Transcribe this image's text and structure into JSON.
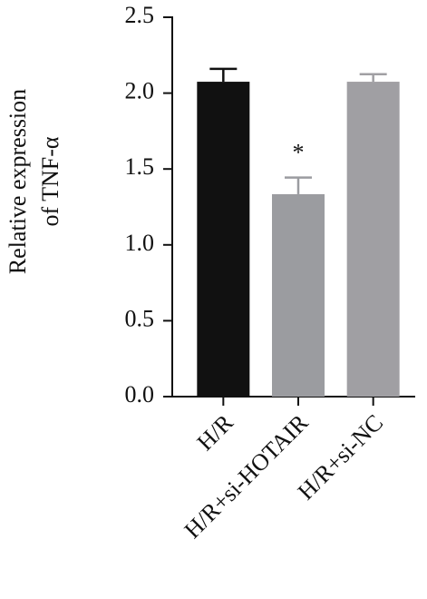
{
  "chart_data": {
    "type": "bar",
    "ylabel": [
      "Relative expression",
      "of TNF-α"
    ],
    "categories": [
      "H/R",
      "H/R+si-HOTAIR",
      "H/R+si-NC"
    ],
    "values": [
      2.075,
      1.334,
      2.075
    ],
    "errors": [
      0.085,
      0.11,
      0.05
    ],
    "colors": [
      "#111111",
      "#9b9ca0",
      "#a09fa3"
    ],
    "significance_labels": [
      null,
      "*",
      null
    ],
    "ylim": [
      0,
      2.5
    ],
    "yticks": [
      {
        "value": 0,
        "label": "0.0"
      },
      {
        "value": 0.5,
        "label": "0.5"
      },
      {
        "value": 1,
        "label": "1.0"
      },
      {
        "value": 1.5,
        "label": "1.5"
      },
      {
        "value": 2,
        "label": "2.0"
      },
      {
        "value": 2.5,
        "label": "2.5"
      }
    ]
  }
}
